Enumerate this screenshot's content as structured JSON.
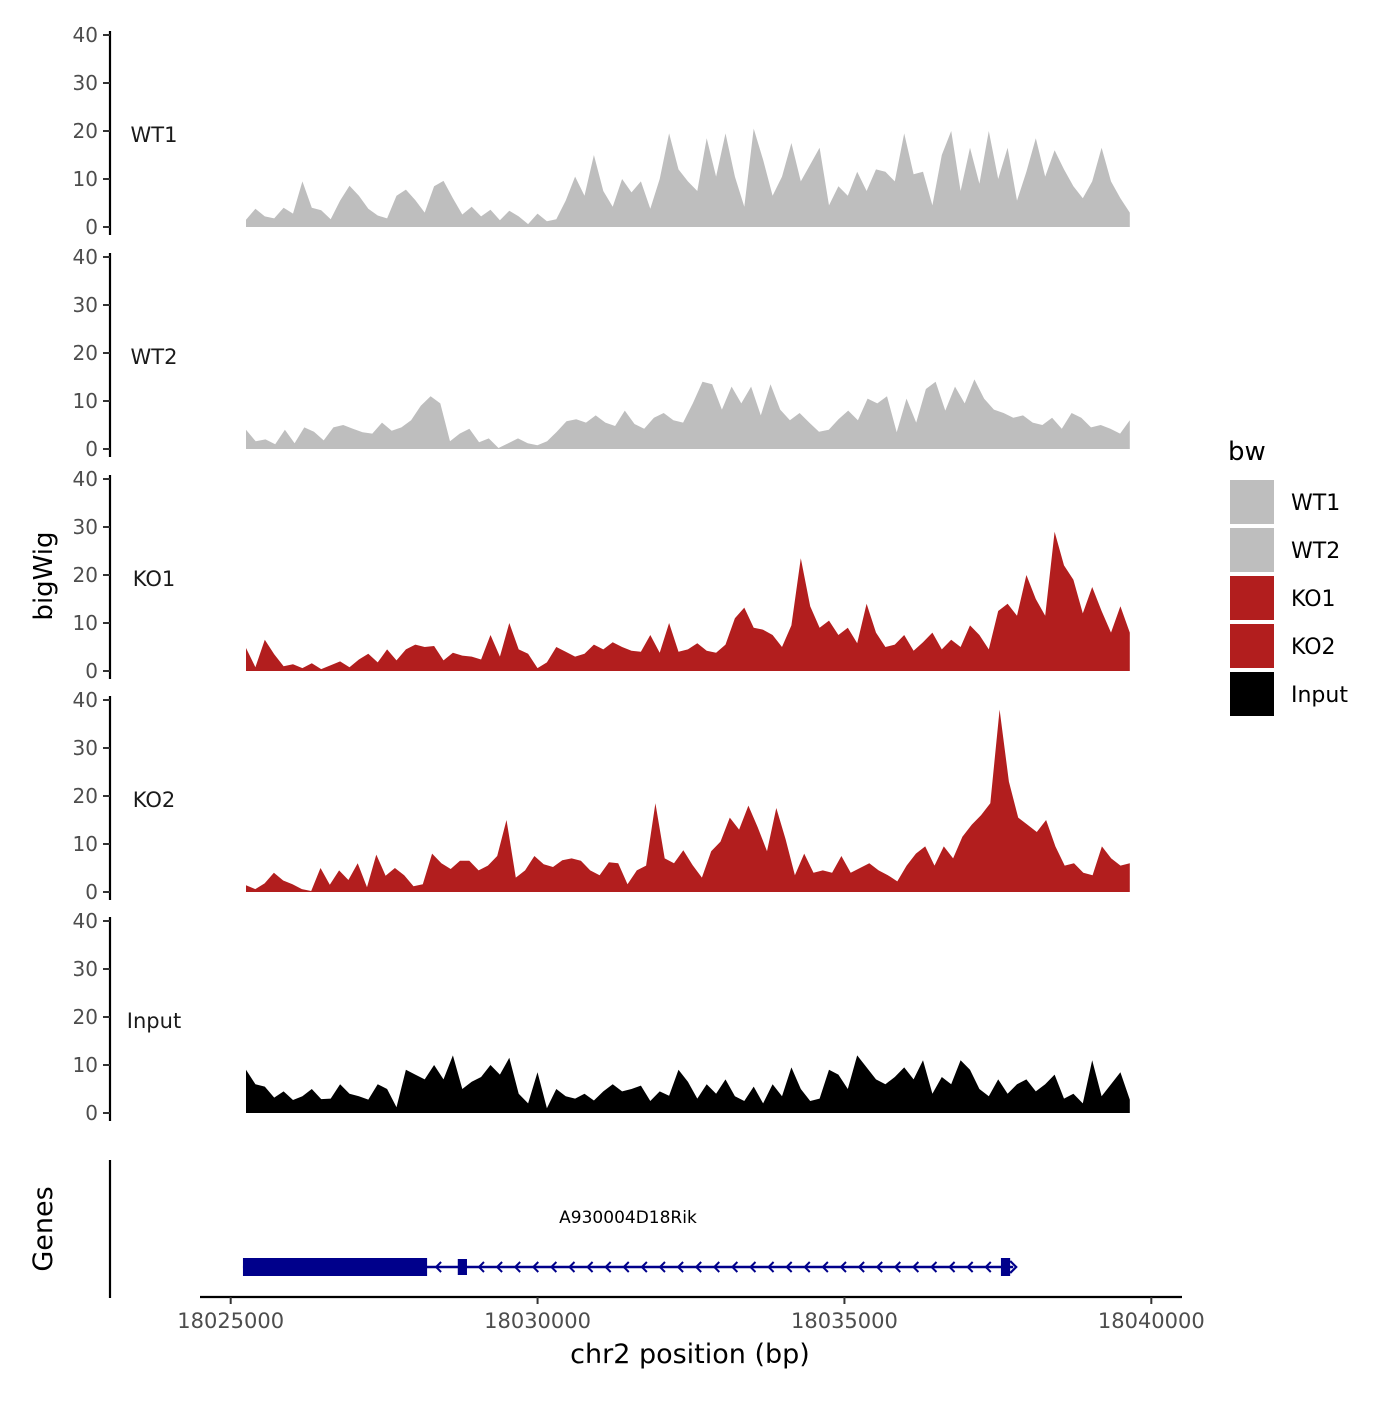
{
  "chart_data": {
    "type": "area",
    "ylabel": "bigWig",
    "xlabel": "chr2 position (bp)",
    "x_ticks": [
      18025000,
      18030000,
      18035000,
      18040000
    ],
    "x_tick_labels": [
      "18025000",
      "18030000",
      "18035000",
      "18040000"
    ],
    "x_range": [
      18024500,
      18040500
    ],
    "y_range": [
      0,
      40
    ],
    "y_ticks": [
      0,
      10,
      20,
      30,
      40
    ],
    "y_tick_labels": [
      "0",
      "10",
      "20",
      "30",
      "40"
    ],
    "signal_range": [
      18025250,
      18039650
    ],
    "legend": {
      "title": "bw",
      "placement": "right",
      "entries": [
        {
          "label": "WT1",
          "color": "#bebebe"
        },
        {
          "label": "WT2",
          "color": "#bebebe"
        },
        {
          "label": "KO1",
          "color": "#b21e1e"
        },
        {
          "label": "KO2",
          "color": "#b21e1e"
        },
        {
          "label": "Input",
          "color": "#000000"
        }
      ]
    },
    "series": [
      {
        "name": "WT1",
        "color": "#bebebe",
        "values": [
          1.5,
          3.8,
          2.2,
          1.8,
          4,
          2.8,
          9.5,
          4,
          3.5,
          1.6,
          5.5,
          8.6,
          6.5,
          3.8,
          2.4,
          1.8,
          6.5,
          7.8,
          5.6,
          3,
          8.5,
          9.6,
          6,
          2.6,
          4.2,
          2.2,
          3.6,
          1.4,
          3.4,
          2.2,
          0.6,
          2.8,
          1.2,
          1.6,
          5.5,
          10.5,
          6.5,
          15,
          7.5,
          4.2,
          10,
          7.2,
          9.5,
          3.8,
          10,
          19.5,
          12,
          9.5,
          7.5,
          18.5,
          10.5,
          19.5,
          10.5,
          4.2,
          20.5,
          14,
          6.5,
          10.5,
          17.5,
          9.5,
          13,
          16.5,
          4.5,
          8.5,
          6.5,
          11.5,
          7.5,
          12,
          11.5,
          9.5,
          19.5,
          11,
          11.5,
          4.5,
          15,
          20,
          7.5,
          16.5,
          9,
          20,
          10,
          16.5,
          5.5,
          11.5,
          18.5,
          10.5,
          16,
          12,
          8.5,
          6,
          9.5,
          16.5,
          9.5,
          6,
          3
        ]
      },
      {
        "name": "WT2",
        "color": "#bebebe",
        "values": [
          4,
          1.6,
          2,
          1,
          4,
          1.2,
          4.5,
          3.6,
          1.8,
          4.5,
          5,
          4.2,
          3.5,
          3.2,
          5.5,
          3.8,
          4.5,
          6,
          9,
          11,
          9.5,
          1.6,
          3.2,
          4.2,
          1.4,
          2.2,
          0.2,
          1.2,
          2.2,
          1.2,
          0.8,
          1.6,
          3.6,
          5.8,
          6.2,
          5.5,
          7,
          5.5,
          4.8,
          8,
          5.2,
          4.2,
          6.5,
          7.5,
          6,
          5.5,
          9.5,
          14,
          13.5,
          8.2,
          13,
          9.5,
          13,
          7,
          13.5,
          8.2,
          6,
          7.5,
          5.5,
          3.6,
          4,
          6.2,
          8,
          6,
          10.5,
          9.5,
          11,
          3.5,
          10.5,
          5.5,
          12.5,
          14,
          8,
          13,
          9.5,
          14.5,
          10.5,
          8.2,
          7.5,
          6.5,
          7,
          5.5,
          5,
          6.5,
          4.2,
          7.5,
          6.5,
          4.5,
          5,
          4.2,
          3.2,
          6
        ]
      },
      {
        "name": "KO1",
        "color": "#b21e1e",
        "values": [
          4.8,
          0.8,
          6.5,
          3.5,
          1,
          1.4,
          0.6,
          1.6,
          0.4,
          1.2,
          2,
          0.8,
          2.4,
          3.6,
          1.8,
          4.5,
          2.2,
          4.5,
          5.5,
          5,
          5.2,
          2.2,
          3.8,
          3.2,
          3,
          2.4,
          7.5,
          3,
          10,
          4.5,
          3.6,
          0.6,
          1.8,
          5,
          4,
          3,
          3.6,
          5.5,
          4.5,
          6,
          5,
          4.2,
          4,
          7.5,
          3.8,
          10,
          4,
          4.5,
          5.8,
          4.2,
          3.8,
          5.5,
          11,
          13.2,
          9,
          8.6,
          7.5,
          5,
          9.5,
          23.5,
          13.5,
          9,
          10.5,
          7.5,
          9,
          5.8,
          14,
          8,
          5,
          5.5,
          7.5,
          4.2,
          6,
          8,
          4.5,
          6.5,
          5,
          9.5,
          7.5,
          4.5,
          12.5,
          14,
          11.5,
          20,
          15,
          11.5,
          29,
          22,
          19,
          12,
          17.5,
          12.5,
          8,
          13.5,
          8
        ]
      },
      {
        "name": "KO2",
        "color": "#b21e1e",
        "values": [
          1.4,
          0.6,
          1.8,
          4,
          2.4,
          1.6,
          0.6,
          0.2,
          5,
          1.5,
          4.5,
          2.5,
          6,
          1,
          7.8,
          3.4,
          5,
          3.5,
          1.2,
          1.6,
          8,
          6,
          4.8,
          6.5,
          6.5,
          4.5,
          5.5,
          7.5,
          15,
          3,
          4.5,
          7.5,
          5.8,
          5.2,
          6.6,
          7,
          6.5,
          4.5,
          3.5,
          6.2,
          6,
          1.6,
          4.5,
          5.5,
          18.5,
          7,
          6,
          8.7,
          5.6,
          3,
          8.5,
          10.5,
          15.5,
          13,
          18,
          13.5,
          8.5,
          17.5,
          11,
          3.5,
          8,
          4,
          4.5,
          4,
          7.5,
          4,
          5,
          6,
          4.5,
          3.5,
          2.2,
          5.5,
          8,
          9.5,
          5.5,
          9.5,
          7,
          11.5,
          14,
          16,
          18.5,
          38,
          23,
          15.5,
          14,
          12.5,
          15,
          9.5,
          5.5,
          6,
          4,
          3.5,
          9.5,
          7,
          5.5,
          6
        ]
      },
      {
        "name": "Input",
        "color": "#000000",
        "values": [
          9,
          6,
          5.5,
          3.2,
          4.5,
          2.7,
          3.5,
          5,
          2.9,
          3,
          6,
          4,
          3.5,
          2.8,
          6,
          5,
          1.2,
          9,
          8,
          7,
          10,
          7,
          12,
          5,
          6.5,
          7.5,
          10,
          8,
          11.5,
          4,
          2,
          8.5,
          1,
          5,
          3.5,
          3,
          4,
          2.6,
          4.5,
          6,
          4.5,
          5,
          5.7,
          2.5,
          4.5,
          3.6,
          9,
          6.5,
          3,
          6,
          4,
          7,
          3.5,
          2.5,
          5.5,
          2,
          6,
          3.5,
          9.5,
          5,
          2.5,
          3,
          9,
          8,
          5,
          12,
          9.5,
          7,
          6,
          7.5,
          9.5,
          7,
          11,
          4,
          7.5,
          6,
          11,
          9,
          5,
          3.5,
          7,
          4,
          6,
          7,
          4.5,
          6,
          8,
          3,
          4,
          2,
          11,
          3.5,
          6,
          8.5,
          2.8
        ]
      }
    ],
    "genes_track": {
      "label": "Genes",
      "gene_name": "A930004D18Rik",
      "strand": "-",
      "color": "#00008b",
      "transcript_start": 18025200,
      "transcript_end": 18037750,
      "exons": [
        [
          18025200,
          18028200
        ],
        [
          18028700,
          18028850
        ],
        [
          18037550,
          18037700
        ]
      ]
    }
  }
}
